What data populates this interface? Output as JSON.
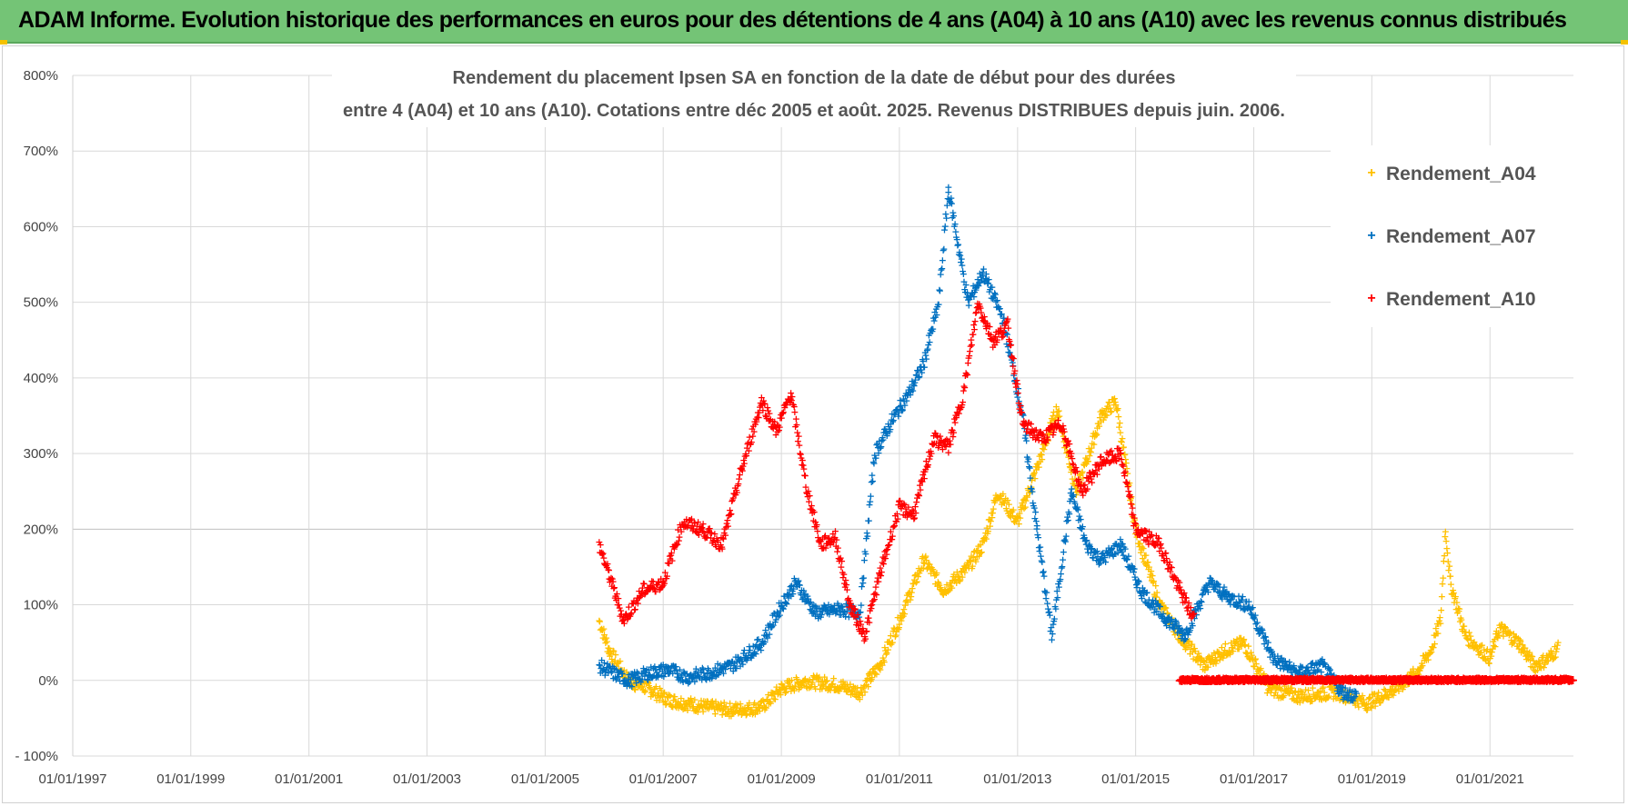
{
  "banner": {
    "title": "ADAM Informe. Evolution historique des performances en euros pour des détentions de 4 ans (A04) à 10 ans (A10) avec les revenus connus distribués"
  },
  "colors": {
    "banner": "#74c476",
    "A04": "#ffc000",
    "A07": "#0070c0",
    "A10": "#ff0000",
    "grid": "#d9d9d9"
  },
  "chart_data": {
    "type": "scatter",
    "title_lines": [
      "Rendement du placement Ipsen SA en fonction de la date de début pour des durées",
      "entre 4 (A04) et 10 ans (A10).  Cotations entre déc 2005 et août. 2025. Revenus DISTRIBUES depuis juin. 2006."
    ],
    "x_axis": {
      "type": "date",
      "range": [
        "1997-01-01",
        "2022-06-01"
      ],
      "tick_labels": [
        "01/01/1997",
        "01/01/1999",
        "01/01/2001",
        "01/01/2003",
        "01/01/2005",
        "01/01/2007",
        "01/01/2009",
        "01/01/2011",
        "01/01/2013",
        "01/01/2015",
        "01/01/2017",
        "01/01/2019",
        "01/01/2021"
      ]
    },
    "y_axis": {
      "unit": "%",
      "range": [
        -100,
        800
      ],
      "tick_labels": [
        "- 100%",
        "0%",
        "100%",
        "200%",
        "300%",
        "400%",
        "500%",
        "600%",
        "700%",
        "800%"
      ]
    },
    "grid": true,
    "legend_position": "top-right",
    "marker": "+",
    "series": [
      {
        "name": "Rendement_A04",
        "color": "#ffc000",
        "points": [
          [
            "2005-12-01",
            80
          ],
          [
            "2006-02-01",
            40
          ],
          [
            "2006-06-01",
            0
          ],
          [
            "2006-10-01",
            -10
          ],
          [
            "2007-02-01",
            -25
          ],
          [
            "2007-06-01",
            -30
          ],
          [
            "2007-10-01",
            -35
          ],
          [
            "2008-03-01",
            -38
          ],
          [
            "2008-09-01",
            -35
          ],
          [
            "2009-01-01",
            -10
          ],
          [
            "2009-06-01",
            0
          ],
          [
            "2009-12-01",
            -5
          ],
          [
            "2010-05-01",
            -15
          ],
          [
            "2010-09-01",
            20
          ],
          [
            "2011-01-01",
            80
          ],
          [
            "2011-06-01",
            160
          ],
          [
            "2011-10-01",
            120
          ],
          [
            "2012-03-01",
            150
          ],
          [
            "2012-06-01",
            180
          ],
          [
            "2012-09-01",
            250
          ],
          [
            "2013-01-01",
            210
          ],
          [
            "2013-06-01",
            300
          ],
          [
            "2013-09-01",
            360
          ],
          [
            "2014-01-01",
            250
          ],
          [
            "2014-06-01",
            350
          ],
          [
            "2014-09-01",
            370
          ],
          [
            "2015-01-01",
            200
          ],
          [
            "2015-06-01",
            100
          ],
          [
            "2015-10-01",
            60
          ],
          [
            "2016-03-01",
            20
          ],
          [
            "2016-07-01",
            40
          ],
          [
            "2016-11-01",
            50
          ],
          [
            "2017-04-01",
            -10
          ],
          [
            "2017-10-01",
            -20
          ],
          [
            "2018-06-01",
            -15
          ],
          [
            "2018-12-01",
            -30
          ],
          [
            "2019-06-01",
            -10
          ],
          [
            "2019-10-01",
            10
          ],
          [
            "2020-01-01",
            40
          ],
          [
            "2020-03-01",
            80
          ],
          [
            "2020-04-01",
            200
          ],
          [
            "2020-05-01",
            130
          ],
          [
            "2020-08-01",
            60
          ],
          [
            "2021-01-01",
            30
          ],
          [
            "2021-03-01",
            70
          ],
          [
            "2021-07-01",
            50
          ],
          [
            "2021-10-01",
            20
          ],
          [
            "2022-01-01",
            30
          ],
          [
            "2022-03-01",
            45
          ]
        ]
      },
      {
        "name": "Rendement_A07",
        "color": "#0070c0",
        "points": [
          [
            "2005-12-01",
            20
          ],
          [
            "2006-06-01",
            0
          ],
          [
            "2006-10-01",
            10
          ],
          [
            "2007-02-01",
            15
          ],
          [
            "2007-06-01",
            5
          ],
          [
            "2007-10-01",
            10
          ],
          [
            "2008-03-01",
            20
          ],
          [
            "2008-09-01",
            50
          ],
          [
            "2009-01-01",
            100
          ],
          [
            "2009-04-01",
            130
          ],
          [
            "2009-08-01",
            90
          ],
          [
            "2010-01-01",
            95
          ],
          [
            "2010-05-01",
            90
          ],
          [
            "2010-08-01",
            300
          ],
          [
            "2010-12-01",
            350
          ],
          [
            "2011-03-01",
            380
          ],
          [
            "2011-06-01",
            420
          ],
          [
            "2011-09-01",
            500
          ],
          [
            "2011-11-01",
            650
          ],
          [
            "2012-03-01",
            500
          ],
          [
            "2012-06-01",
            540
          ],
          [
            "2012-10-01",
            480
          ],
          [
            "2013-02-01",
            350
          ],
          [
            "2013-05-01",
            200
          ],
          [
            "2013-08-01",
            60
          ],
          [
            "2013-12-01",
            250
          ],
          [
            "2014-03-01",
            180
          ],
          [
            "2014-06-01",
            160
          ],
          [
            "2014-10-01",
            180
          ],
          [
            "2015-02-01",
            120
          ],
          [
            "2015-06-01",
            90
          ],
          [
            "2015-11-01",
            60
          ],
          [
            "2016-04-01",
            130
          ],
          [
            "2016-08-01",
            110
          ],
          [
            "2016-12-01",
            100
          ],
          [
            "2017-05-01",
            30
          ],
          [
            "2017-10-01",
            10
          ],
          [
            "2018-03-01",
            20
          ],
          [
            "2018-07-01",
            -15
          ],
          [
            "2018-10-01",
            -20
          ]
        ]
      },
      {
        "name": "Rendement_A10",
        "color": "#ff0000",
        "points": [
          [
            "2005-12-01",
            180
          ],
          [
            "2006-02-01",
            140
          ],
          [
            "2006-05-01",
            80
          ],
          [
            "2006-09-01",
            120
          ],
          [
            "2007-01-01",
            130
          ],
          [
            "2007-05-01",
            210
          ],
          [
            "2007-09-01",
            200
          ],
          [
            "2008-01-01",
            180
          ],
          [
            "2008-05-01",
            280
          ],
          [
            "2008-09-01",
            370
          ],
          [
            "2008-12-01",
            330
          ],
          [
            "2009-03-01",
            380
          ],
          [
            "2009-06-01",
            260
          ],
          [
            "2009-09-01",
            180
          ],
          [
            "2009-12-01",
            190
          ],
          [
            "2010-03-01",
            100
          ],
          [
            "2010-06-01",
            60
          ],
          [
            "2010-09-01",
            140
          ],
          [
            "2011-01-01",
            230
          ],
          [
            "2011-04-01",
            220
          ],
          [
            "2011-08-01",
            320
          ],
          [
            "2011-11-01",
            310
          ],
          [
            "2012-02-01",
            380
          ],
          [
            "2012-05-01",
            500
          ],
          [
            "2012-08-01",
            450
          ],
          [
            "2012-11-01",
            470
          ],
          [
            "2013-02-01",
            340
          ],
          [
            "2013-06-01",
            320
          ],
          [
            "2013-10-01",
            340
          ],
          [
            "2014-02-01",
            250
          ],
          [
            "2014-06-01",
            290
          ],
          [
            "2014-10-01",
            300
          ],
          [
            "2015-01-01",
            200
          ],
          [
            "2015-06-01",
            180
          ],
          [
            "2015-10-01",
            120
          ],
          [
            "2016-01-01",
            80
          ]
        ]
      },
      {
        "name": "",
        "color": "#ff0000",
        "points": [
          [
            "2015-10-01",
            0
          ],
          [
            "2022-06-01",
            0
          ]
        ]
      }
    ]
  }
}
